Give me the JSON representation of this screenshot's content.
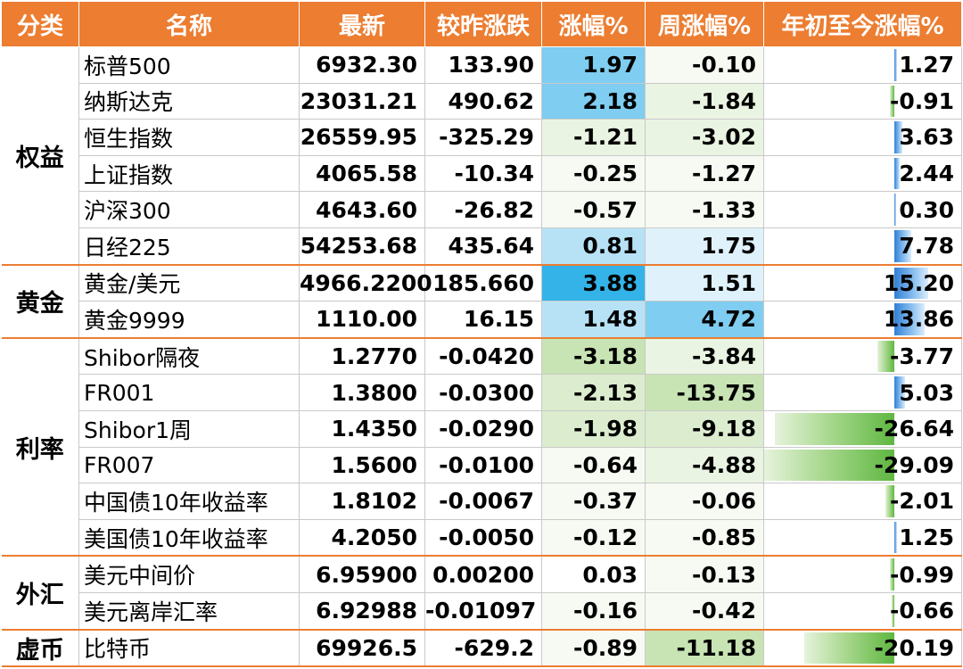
{
  "headers": {
    "category": "分类",
    "name": "名称",
    "latest": "最新",
    "change": "较昨涨跌",
    "pct": "涨幅%",
    "week": "周涨幅%",
    "ytd": "年初至今涨幅%"
  },
  "colors": {
    "header_bg": "#ec7d31",
    "up": "#e8132b",
    "down": "#21a03d",
    "bar_positive": "#2f7fd6",
    "bar_negative": "#5fb741",
    "pct_fill_strong": "#33b3e8",
    "pct_fill_light": "#dff2fb",
    "week_fill_green": "#c8e3b4"
  },
  "groups": [
    {
      "label": "权益",
      "rows": 6
    },
    {
      "label": "黄金",
      "rows": 2
    },
    {
      "label": "利率",
      "rows": 6
    },
    {
      "label": "外汇",
      "rows": 2
    },
    {
      "label": "虚币",
      "rows": 1
    }
  ],
  "ytd_scale_max_abs": 29.09,
  "rows": [
    {
      "name": "标普500",
      "latest": "6932.30",
      "change": "133.90",
      "pct": "1.97",
      "week": "-0.10",
      "ytd": "1.27",
      "ytd_value": 1.27,
      "pct_fill": "blue-2",
      "week_fill": "green-4"
    },
    {
      "name": "纳斯达克",
      "latest": "23031.21",
      "change": "490.62",
      "pct": "2.18",
      "week": "-1.84",
      "ytd": "-0.91",
      "ytd_value": -0.91,
      "pct_fill": "blue-2",
      "week_fill": "green-3"
    },
    {
      "name": "恒生指数",
      "latest": "26559.95",
      "change": "-325.29",
      "pct": "-1.21",
      "week": "-3.02",
      "ytd": "3.63",
      "ytd_value": 3.63,
      "pct_fill": "green-3",
      "week_fill": "green-3"
    },
    {
      "name": "上证指数",
      "latest": "4065.58",
      "change": "-10.34",
      "pct": "-0.25",
      "week": "-1.27",
      "ytd": "2.44",
      "ytd_value": 2.44,
      "pct_fill": "green-4",
      "week_fill": "green-4"
    },
    {
      "name": "沪深300",
      "latest": "4643.60",
      "change": "-26.82",
      "pct": "-0.57",
      "week": "-1.33",
      "ytd": "0.30",
      "ytd_value": 0.3,
      "pct_fill": "green-4",
      "week_fill": "green-4"
    },
    {
      "name": "日经225",
      "latest": "54253.68",
      "change": "435.64",
      "pct": "0.81",
      "week": "1.75",
      "ytd": "7.78",
      "ytd_value": 7.78,
      "pct_fill": "blue-3",
      "week_fill": "blue-4"
    },
    {
      "name": "黄金/美元",
      "latest": "4966.2200",
      "change": "185.660",
      "pct": "3.88",
      "week": "1.51",
      "ytd": "15.20",
      "ytd_value": 15.2,
      "pct_fill": "blue-1",
      "week_fill": "blue-4"
    },
    {
      "name": "黄金9999",
      "latest": "1110.00",
      "change": "16.15",
      "pct": "1.48",
      "week": "4.72",
      "ytd": "13.86",
      "ytd_value": 13.86,
      "pct_fill": "blue-3",
      "week_fill": "blue-2"
    },
    {
      "name": "Shibor隔夜",
      "latest": "1.2770",
      "change": "-0.0420",
      "pct": "-3.18",
      "week": "-3.84",
      "ytd": "-3.77",
      "ytd_value": -3.77,
      "pct_fill": "green-1",
      "week_fill": "green-3"
    },
    {
      "name": "FR001",
      "latest": "1.3800",
      "change": "-0.0300",
      "pct": "-2.13",
      "week": "-13.75",
      "ytd": "5.03",
      "ytd_value": 5.03,
      "pct_fill": "green-2",
      "week_fill": "green-1"
    },
    {
      "name": "Shibor1周",
      "latest": "1.4350",
      "change": "-0.0290",
      "pct": "-1.98",
      "week": "-9.18",
      "ytd": "-26.64",
      "ytd_value": -26.64,
      "pct_fill": "green-2",
      "week_fill": "green-2"
    },
    {
      "name": "FR007",
      "latest": "1.5600",
      "change": "-0.0100",
      "pct": "-0.64",
      "week": "-4.88",
      "ytd": "-29.09",
      "ytd_value": -29.09,
      "pct_fill": "green-4",
      "week_fill": "green-3"
    },
    {
      "name": "中国债10年收益率",
      "latest": "1.8102",
      "change": "-0.0067",
      "pct": "-0.37",
      "week": "-0.06",
      "ytd": "-2.01",
      "ytd_value": -2.01,
      "pct_fill": "green-4",
      "week_fill": "green-4"
    },
    {
      "name": "美国债10年收益率",
      "latest": "4.2050",
      "change": "-0.0050",
      "pct": "-0.12",
      "week": "-0.85",
      "ytd": "1.25",
      "ytd_value": 1.25,
      "pct_fill": "green-4",
      "week_fill": "green-4"
    },
    {
      "name": "美元中间价",
      "latest": "6.95900",
      "change": "0.00200",
      "pct": "0.03",
      "week": "-0.13",
      "ytd": "-0.99",
      "ytd_value": -0.99,
      "pct_fill": "none",
      "week_fill": "green-4"
    },
    {
      "name": "美元离岸汇率",
      "latest": "6.92988",
      "change": "-0.01097",
      "pct": "-0.16",
      "week": "-0.42",
      "ytd": "-0.66",
      "ytd_value": -0.66,
      "pct_fill": "green-4",
      "week_fill": "green-4"
    },
    {
      "name": "比特币",
      "latest": "69926.5",
      "change": "-629.2",
      "pct": "-0.89",
      "week": "-11.18",
      "ytd": "-20.19",
      "ytd_value": -20.19,
      "pct_fill": "green-4",
      "week_fill": "green-1"
    }
  ]
}
